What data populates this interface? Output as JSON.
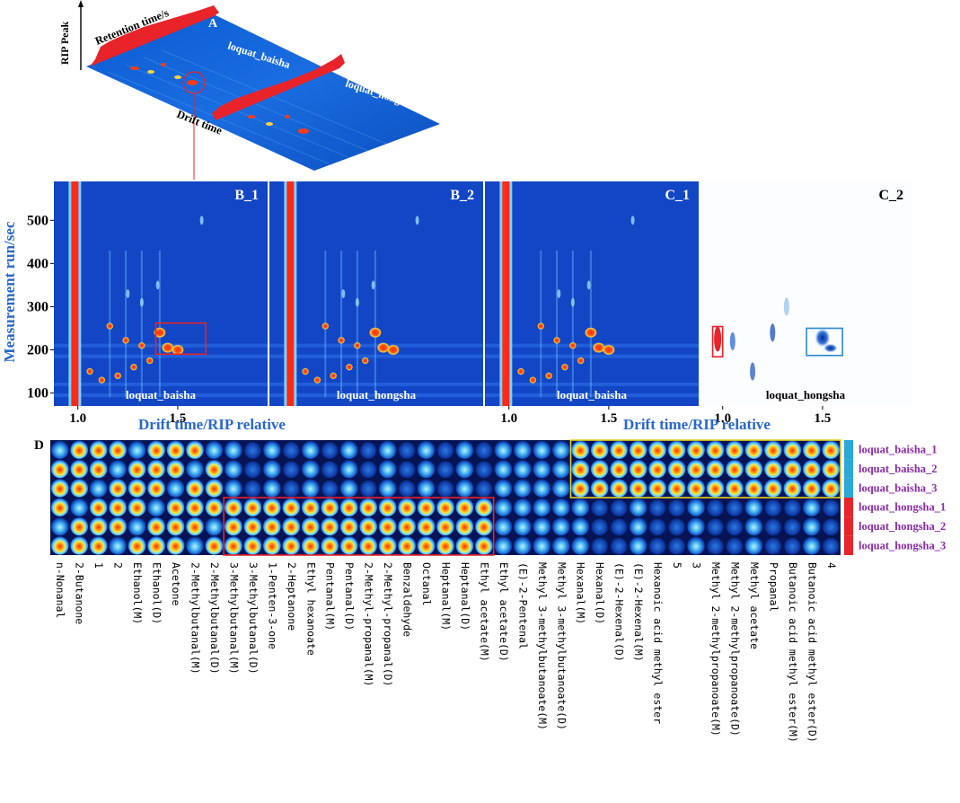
{
  "chart_data": [
    {
      "panel": "A",
      "type": "3d-surface",
      "axis_labels": [
        "RIP Peak",
        "Retention time/s",
        "Drift time"
      ],
      "samples": [
        "loquat_baisha",
        "loquat_hongsha"
      ]
    },
    {
      "type": "heatmap",
      "ylabel": "Measurement run/sec",
      "xlabel": "Drift time/RIP relative",
      "y_ticks": [
        100,
        200,
        300,
        400,
        500
      ],
      "ylim": [
        70,
        590
      ],
      "x_ticks": [
        "1.0",
        "1.5"
      ],
      "xlim": [
        0.88,
        1.95
      ],
      "panels": [
        {
          "label": "B_1",
          "sample": "loquat_baisha",
          "mode": "spectrum"
        },
        {
          "label": "B_2",
          "sample": "loquat_hongsha",
          "mode": "spectrum"
        },
        {
          "label": "C_1",
          "sample": "loquat_baisha",
          "mode": "spectrum"
        },
        {
          "label": "C_2",
          "sample": "loquat_hongsha",
          "mode": "difference"
        }
      ],
      "highlight_boxes": [
        {
          "panel": "B_1",
          "x": [
            1.39,
            1.64
          ],
          "y": [
            190,
            262
          ],
          "color": "#e8232a"
        },
        {
          "panel": "C_2",
          "x": [
            0.95,
            1.0
          ],
          "y": [
            184,
            254
          ],
          "color": "#e8232a"
        },
        {
          "panel": "C_2",
          "x": [
            1.42,
            1.6
          ],
          "y": [
            187,
            250
          ],
          "color": "#2a8ad6"
        }
      ],
      "bright_spots": [
        {
          "x": 1.41,
          "y": 240
        },
        {
          "x": 1.45,
          "y": 205
        },
        {
          "x": 1.5,
          "y": 200
        },
        {
          "x": 1.16,
          "y": 255
        },
        {
          "x": 1.24,
          "y": 222
        },
        {
          "x": 1.32,
          "y": 210
        },
        {
          "x": 1.06,
          "y": 150
        },
        {
          "x": 1.12,
          "y": 130
        },
        {
          "x": 1.2,
          "y": 140
        },
        {
          "x": 1.28,
          "y": 160
        },
        {
          "x": 1.36,
          "y": 175
        }
      ]
    },
    {
      "panel": "D",
      "type": "table",
      "title": "D",
      "rows": [
        "loquat_baisha_1",
        "loquat_baisha_2",
        "loquat_baisha_3",
        "loquat_hongsha_1",
        "loquat_hongsha_2",
        "loquat_hongsha_3"
      ],
      "row_colors": [
        "#2aa8d8",
        "#2aa8d8",
        "#2aa8d8",
        "#e8232a",
        "#e8232a",
        "#e8232a"
      ],
      "compounds": [
        "n-Nonanal",
        "2-Butanone",
        "1",
        "2",
        "Ethanol(M)",
        "Ethanol(D)",
        "Acetone",
        "2-Methylbutanal(M)",
        "2-Methylbutanal(D)",
        "3-Methylbutanal(M)",
        "3-Methylbutanal(D)",
        "1-Penten-3-one",
        "2-Heptanone",
        "Ethyl hexanoate",
        "Pentanal(M)",
        "Pentanal(D)",
        "2-Methyl-propanal(M)",
        "2-Methyl-propanal(D)",
        "Benzaldehyde",
        "Octanal",
        "Heptanal(M)",
        "Heptanal(D)",
        "Ethyl acetate(M)",
        "Ethyl acetate(D)",
        "(E)-2-Pentenal",
        "Methyl 3-methylbutanoate(M)",
        "Methyl 3-methylbutanoate(D)",
        "Hexanal(M)",
        "Hexanal(D)",
        "(E)-2-Hexenal(D)",
        "(E)-2-Hexenal(M)",
        "Hexanoic acid methyl ester",
        "5",
        "3",
        "Methyl 2-methylpropanoate(M)",
        "Methyl 2-methylpropanoate(D)",
        "Methyl acetate",
        "Propanal",
        "Butanoic acid methyl ester(M)",
        "Butanoic acid methyl ester(D)",
        "4"
      ],
      "highlight_boxes": [
        {
          "columns": [
            9,
            22
          ],
          "rows": [
            3,
            5
          ],
          "color": "#e8232a"
        },
        {
          "columns": [
            27,
            40
          ],
          "rows": [
            0,
            2
          ],
          "color": "#e8d21e"
        }
      ]
    }
  ]
}
